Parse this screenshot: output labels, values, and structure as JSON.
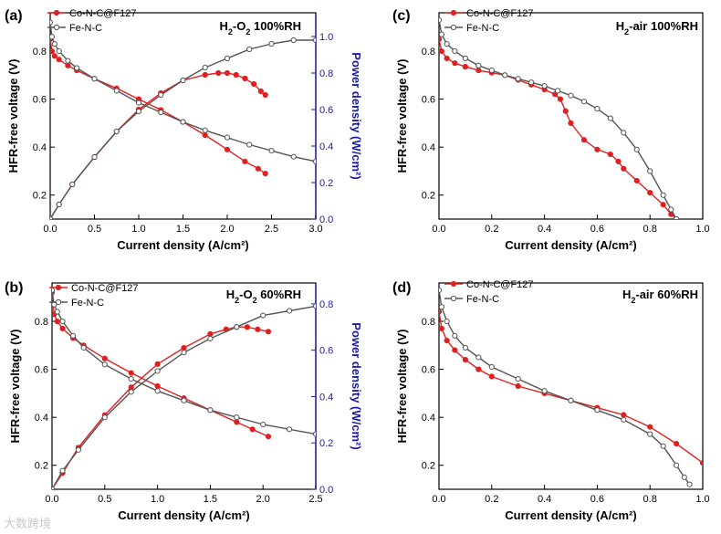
{
  "chart_data": [
    {
      "panel": "(a)",
      "type": "line",
      "title_html": "H<tspan baseline-shift='sub' font-size='9'>2</tspan>-O<tspan baseline-shift='sub' font-size='9'>2</tspan> 100%RH",
      "xlabel": "Current density (A/cm²)",
      "ylabel": "HFR-free voltage (V)",
      "y2label": "Power density (W/cm²)",
      "xlim": [
        0,
        3
      ],
      "ylim": [
        0.1,
        0.96
      ],
      "y2lim": [
        0,
        1.13
      ],
      "xticks": [
        0,
        0.5,
        1.0,
        1.5,
        2.0,
        2.5,
        3.0
      ],
      "xtick_labels": [
        "0.0",
        "0.5",
        "1.0",
        "1.5",
        "2.0",
        "2.5",
        "3.0"
      ],
      "yticks": [
        0.2,
        0.4,
        0.6,
        0.8
      ],
      "ytick_labels": [
        "0.2",
        "0.4",
        "0.6",
        "0.8"
      ],
      "y2ticks": [
        0,
        0.2,
        0.4,
        0.6,
        0.8,
        1.0
      ],
      "y2tick_labels": [
        "0.0",
        "0.2",
        "0.4",
        "0.6",
        "0.8",
        "1.0"
      ],
      "legend": [
        "Co-N-C@F127",
        "Fe-N-C"
      ],
      "legend_position": "top-left",
      "series": [
        {
          "name": "Co-N-C@F127",
          "color": "#e02020",
          "marker": "filled",
          "voltage": {
            "x": [
              0,
              0.02,
              0.05,
              0.1,
              0.2,
              0.3,
              0.5,
              0.75,
              1.0,
              1.25,
              1.5,
              1.75,
              2.0,
              2.2,
              2.35,
              2.43
            ],
            "y": [
              0.85,
              0.8,
              0.78,
              0.765,
              0.74,
              0.72,
              0.685,
              0.645,
              0.6,
              0.555,
              0.505,
              0.45,
              0.39,
              0.34,
              0.31,
              0.29
            ]
          },
          "power": {
            "x": [
              0,
              0.1,
              0.25,
              0.5,
              0.75,
              1.0,
              1.25,
              1.5,
              1.75,
              1.9,
              2.0,
              2.1,
              2.2,
              2.3,
              2.38,
              2.43
            ],
            "y": [
              0,
              0.08,
              0.19,
              0.34,
              0.48,
              0.6,
              0.69,
              0.76,
              0.79,
              0.8,
              0.8,
              0.79,
              0.77,
              0.74,
              0.7,
              0.68
            ]
          }
        },
        {
          "name": "Fe-N-C",
          "color": "#555555",
          "marker": "open",
          "voltage": {
            "x": [
              0,
              0.02,
              0.05,
              0.1,
              0.2,
              0.3,
              0.5,
              0.75,
              1.0,
              1.25,
              1.5,
              1.75,
              2.0,
              2.25,
              2.5,
              2.75,
              3.0
            ],
            "y": [
              0.92,
              0.86,
              0.83,
              0.8,
              0.76,
              0.73,
              0.685,
              0.635,
              0.585,
              0.545,
              0.505,
              0.47,
              0.44,
              0.41,
              0.385,
              0.36,
              0.34
            ]
          },
          "power": {
            "x": [
              0,
              0.1,
              0.25,
              0.5,
              0.75,
              1.0,
              1.25,
              1.5,
              1.75,
              2.0,
              2.25,
              2.5,
              2.75,
              3.0
            ],
            "y": [
              0,
              0.08,
              0.19,
              0.34,
              0.48,
              0.59,
              0.68,
              0.76,
              0.83,
              0.88,
              0.93,
              0.96,
              0.98,
              0.98
            ]
          }
        }
      ]
    },
    {
      "panel": "(b)",
      "type": "line",
      "title_html": "H<tspan baseline-shift='sub' font-size='9'>2</tspan>-O<tspan baseline-shift='sub' font-size='9'>2</tspan> 60%RH",
      "xlabel": "Current density (A/cm²)",
      "ylabel": "HFR-free voltage (V)",
      "y2label": "Power density (W/cm²)",
      "xlim": [
        0,
        2.5
      ],
      "ylim": [
        0.1,
        0.96
      ],
      "y2lim": [
        0,
        0.89
      ],
      "xticks": [
        0,
        0.5,
        1.0,
        1.5,
        2.0,
        2.5
      ],
      "xtick_labels": [
        "0.0",
        "0.5",
        "1.0",
        "1.5",
        "2.0",
        "2.5"
      ],
      "yticks": [
        0.2,
        0.4,
        0.6,
        0.8
      ],
      "ytick_labels": [
        "0.2",
        "0.4",
        "0.6",
        "0.8"
      ],
      "y2ticks": [
        0,
        0.2,
        0.4,
        0.6,
        0.8
      ],
      "y2tick_labels": [
        "0.0",
        "0.2",
        "0.4",
        "0.6",
        "0.8"
      ],
      "legend": [
        "Co-N-C@F127",
        "Fe-N-C"
      ],
      "legend_position": "top-left",
      "series": [
        {
          "name": "Co-N-C@F127",
          "color": "#e02020",
          "marker": "filled",
          "voltage": {
            "x": [
              0,
              0.02,
              0.05,
              0.1,
              0.2,
              0.3,
              0.5,
              0.75,
              1.0,
              1.25,
              1.5,
              1.75,
              1.9,
              2.05
            ],
            "y": [
              0.92,
              0.83,
              0.8,
              0.77,
              0.73,
              0.7,
              0.645,
              0.585,
              0.53,
              0.48,
              0.43,
              0.38,
              0.35,
              0.32
            ]
          },
          "power": {
            "x": [
              0,
              0.1,
              0.25,
              0.5,
              0.75,
              1.0,
              1.25,
              1.5,
              1.65,
              1.75,
              1.85,
              1.95,
              2.05
            ],
            "y": [
              0,
              0.07,
              0.18,
              0.32,
              0.44,
              0.54,
              0.61,
              0.67,
              0.69,
              0.7,
              0.7,
              0.69,
              0.68
            ]
          }
        },
        {
          "name": "Fe-N-C",
          "color": "#555555",
          "marker": "open",
          "voltage": {
            "x": [
              0,
              0.02,
              0.05,
              0.1,
              0.2,
              0.3,
              0.5,
              0.75,
              1.0,
              1.25,
              1.5,
              1.75,
              2.0,
              2.25,
              2.5
            ],
            "y": [
              0.93,
              0.87,
              0.84,
              0.8,
              0.74,
              0.69,
              0.62,
              0.56,
              0.51,
              0.47,
              0.43,
              0.4,
              0.37,
              0.35,
              0.33
            ]
          },
          "power": {
            "x": [
              0,
              0.1,
              0.25,
              0.5,
              0.75,
              1.0,
              1.25,
              1.5,
              1.75,
              2.0,
              2.25,
              2.5
            ],
            "y": [
              0,
              0.08,
              0.17,
              0.31,
              0.42,
              0.51,
              0.59,
              0.65,
              0.7,
              0.75,
              0.77,
              0.79
            ]
          }
        }
      ]
    },
    {
      "panel": "(c)",
      "type": "line",
      "title_html": "H<tspan baseline-shift='sub' font-size='9'>2</tspan>-air 100%RH",
      "xlabel": "Current density (A/cm²)",
      "ylabel": "HFR-free voltage (V)",
      "xlim": [
        0,
        1.0
      ],
      "ylim": [
        0.1,
        0.96
      ],
      "xticks": [
        0,
        0.2,
        0.4,
        0.6,
        0.8,
        1.0
      ],
      "xtick_labels": [
        "0.0",
        "0.2",
        "0.4",
        "0.6",
        "0.8",
        "1.0"
      ],
      "yticks": [
        0.2,
        0.4,
        0.6,
        0.8
      ],
      "ytick_labels": [
        "0.2",
        "0.4",
        "0.6",
        "0.8"
      ],
      "legend": [
        "Co-N-C@F127",
        "Fe-N-C"
      ],
      "legend_position": "top-left",
      "series": [
        {
          "name": "Co-N-C@F127",
          "color": "#e02020",
          "marker": "filled",
          "voltage": {
            "x": [
              0,
              0.01,
              0.03,
              0.06,
              0.1,
              0.15,
              0.2,
              0.25,
              0.3,
              0.35,
              0.4,
              0.44,
              0.46,
              0.48,
              0.5,
              0.55,
              0.6,
              0.65,
              0.68,
              0.7,
              0.75,
              0.8,
              0.85,
              0.88,
              0.9
            ],
            "y": [
              0.85,
              0.8,
              0.77,
              0.75,
              0.735,
              0.72,
              0.71,
              0.7,
              0.68,
              0.66,
              0.64,
              0.62,
              0.6,
              0.55,
              0.5,
              0.43,
              0.39,
              0.37,
              0.34,
              0.31,
              0.26,
              0.21,
              0.16,
              0.12,
              0.1
            ]
          }
        },
        {
          "name": "Fe-N-C",
          "color": "#555555",
          "marker": "open",
          "voltage": {
            "x": [
              0,
              0.01,
              0.03,
              0.06,
              0.1,
              0.15,
              0.2,
              0.25,
              0.3,
              0.35,
              0.4,
              0.45,
              0.5,
              0.55,
              0.6,
              0.65,
              0.7,
              0.75,
              0.8,
              0.85,
              0.88,
              0.9
            ],
            "y": [
              0.93,
              0.87,
              0.83,
              0.8,
              0.77,
              0.74,
              0.72,
              0.7,
              0.685,
              0.67,
              0.655,
              0.635,
              0.615,
              0.59,
              0.56,
              0.52,
              0.46,
              0.39,
              0.3,
              0.2,
              0.14,
              0.1
            ]
          }
        }
      ]
    },
    {
      "panel": "(d)",
      "type": "line",
      "title_html": "H<tspan baseline-shift='sub' font-size='9'>2</tspan>-air 60%RH",
      "xlabel": "Current density (A/cm²)",
      "ylabel": "HFR-free voltage (V)",
      "xlim": [
        0,
        1.0
      ],
      "ylim": [
        0.1,
        0.96
      ],
      "xticks": [
        0,
        0.2,
        0.4,
        0.6,
        0.8,
        1.0
      ],
      "xtick_labels": [
        "0.0",
        "0.2",
        "0.4",
        "0.6",
        "0.8",
        "1.0"
      ],
      "yticks": [
        0.2,
        0.4,
        0.6,
        0.8
      ],
      "ytick_labels": [
        "0.2",
        "0.4",
        "0.6",
        "0.8"
      ],
      "legend": [
        "Co-N-C@F127",
        "Fe-N-C"
      ],
      "legend_position": "top-left",
      "series": [
        {
          "name": "Co-N-C@F127",
          "color": "#e02020",
          "marker": "filled",
          "voltage": {
            "x": [
              0,
              0.01,
              0.03,
              0.06,
              0.1,
              0.15,
              0.2,
              0.3,
              0.4,
              0.5,
              0.6,
              0.7,
              0.8,
              0.9,
              1.0
            ],
            "y": [
              0.84,
              0.77,
              0.72,
              0.68,
              0.64,
              0.6,
              0.57,
              0.53,
              0.5,
              0.47,
              0.44,
              0.41,
              0.36,
              0.29,
              0.21
            ]
          }
        },
        {
          "name": "Fe-N-C",
          "color": "#555555",
          "marker": "open",
          "voltage": {
            "x": [
              0,
              0.01,
              0.03,
              0.06,
              0.1,
              0.15,
              0.2,
              0.3,
              0.4,
              0.5,
              0.6,
              0.7,
              0.8,
              0.85,
              0.9,
              0.93,
              0.95
            ],
            "y": [
              0.93,
              0.86,
              0.8,
              0.74,
              0.69,
              0.65,
              0.61,
              0.56,
              0.51,
              0.47,
              0.43,
              0.39,
              0.33,
              0.28,
              0.2,
              0.15,
              0.12
            ]
          }
        }
      ]
    }
  ],
  "watermark": "大数跨境"
}
